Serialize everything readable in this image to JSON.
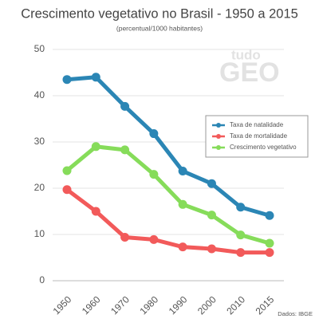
{
  "chart_data": {
    "type": "line",
    "title": "Crescimento vegetativo no Brasil - 1950 a 2015",
    "subtitle": "(percentual/1000 habitantes)",
    "source": "Dados: IBGE",
    "watermark": [
      "tudo",
      "GEO"
    ],
    "categories": [
      "1950",
      "1960",
      "1970",
      "1980",
      "1990",
      "2000",
      "2010",
      "2015"
    ],
    "series": [
      {
        "name": "Taxa de natalidade",
        "color": "#2b86b5",
        "values": [
          43.5,
          44,
          37.7,
          31.8,
          23.7,
          21,
          15.9,
          14.1
        ]
      },
      {
        "name": "Taxa de mortalidade",
        "color": "#f25a5a",
        "values": [
          19.7,
          15,
          9.4,
          8.9,
          7.3,
          6.9,
          6.1,
          6.1
        ]
      },
      {
        "name": "Crescimento vegetativo",
        "color": "#86dc5a",
        "values": [
          23.8,
          29,
          28.3,
          23,
          16.5,
          14.2,
          9.9,
          8.1
        ]
      }
    ],
    "ylim": [
      0,
      50
    ],
    "yticks": [
      0,
      10,
      20,
      30,
      40,
      50
    ],
    "grid": true,
    "legend": "right"
  }
}
